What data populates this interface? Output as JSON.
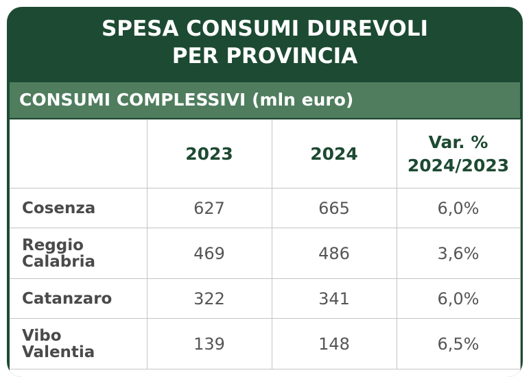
{
  "title": {
    "line1": "SPESA CONSUMI DUREVOLI",
    "line2": "PER PROVINCIA"
  },
  "subheader": "CONSUMI COMPLESSIVI (mln euro)",
  "columns": {
    "c1": "2023",
    "c2": "2024",
    "c3_line1": "Var. %",
    "c3_line2": "2024/2023"
  },
  "rows": [
    {
      "name_line1": "Cosenza",
      "name_line2": "",
      "v2023": "627",
      "v2024": "665",
      "var": "6,0%"
    },
    {
      "name_line1": "Reggio",
      "name_line2": "Calabria",
      "v2023": "469",
      "v2024": "486",
      "var": "3,6%"
    },
    {
      "name_line1": "Catanzaro",
      "name_line2": "",
      "v2023": "322",
      "v2024": "341",
      "var": "6,0%"
    },
    {
      "name_line1": "Vibo",
      "name_line2": "Valentia",
      "v2023": "139",
      "v2024": "148",
      "var": "6,5%"
    }
  ],
  "colors": {
    "dark_green": "#1d4a32",
    "mid_green": "#4f7d5e"
  }
}
